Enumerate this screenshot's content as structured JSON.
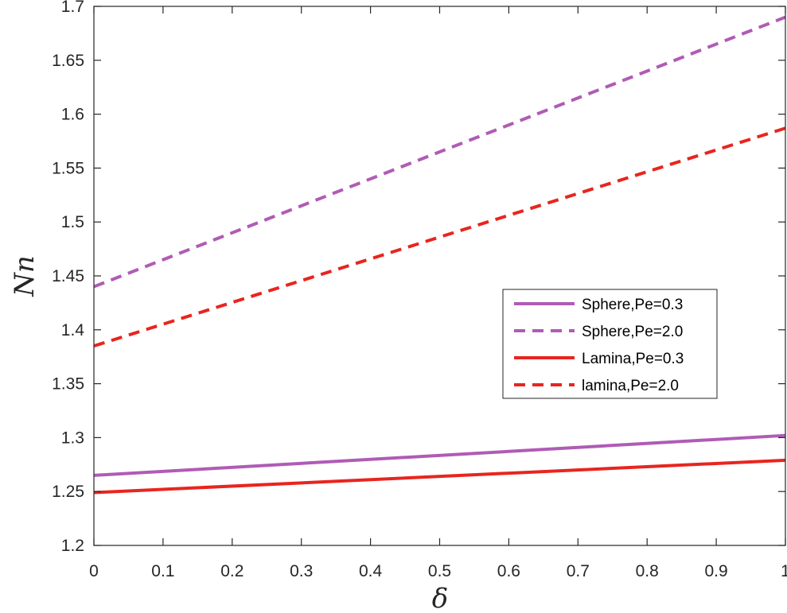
{
  "chart_data": {
    "type": "line",
    "xlabel": "δ",
    "ylabel": "Nn",
    "xlim": [
      0,
      1
    ],
    "ylim": [
      1.2,
      1.7
    ],
    "x_ticks": [
      "0",
      "0.1",
      "0.2",
      "0.3",
      "0.4",
      "0.5",
      "0.6",
      "0.7",
      "0.8",
      "0.9",
      "1"
    ],
    "y_ticks": [
      "1.2",
      "1.25",
      "1.3",
      "1.35",
      "1.4",
      "1.45",
      "1.5",
      "1.55",
      "1.6",
      "1.65",
      "1.7"
    ],
    "grid": false,
    "legend_position": "right",
    "x": [
      0,
      1
    ],
    "series": [
      {
        "name": "Sphere,Pe=0.3",
        "values": [
          1.265,
          1.302
        ],
        "color": "#b05bb5",
        "style": "solid"
      },
      {
        "name": "Sphere,Pe=2.0",
        "values": [
          1.44,
          1.69
        ],
        "color": "#b05bb5",
        "style": "dashed"
      },
      {
        "name": "Lamina,Pe=0.3",
        "values": [
          1.249,
          1.279
        ],
        "color": "#e8251f",
        "style": "solid"
      },
      {
        "name": "lamina,Pe=2.0",
        "values": [
          1.385,
          1.587
        ],
        "color": "#e8251f",
        "style": "dashed"
      }
    ]
  }
}
